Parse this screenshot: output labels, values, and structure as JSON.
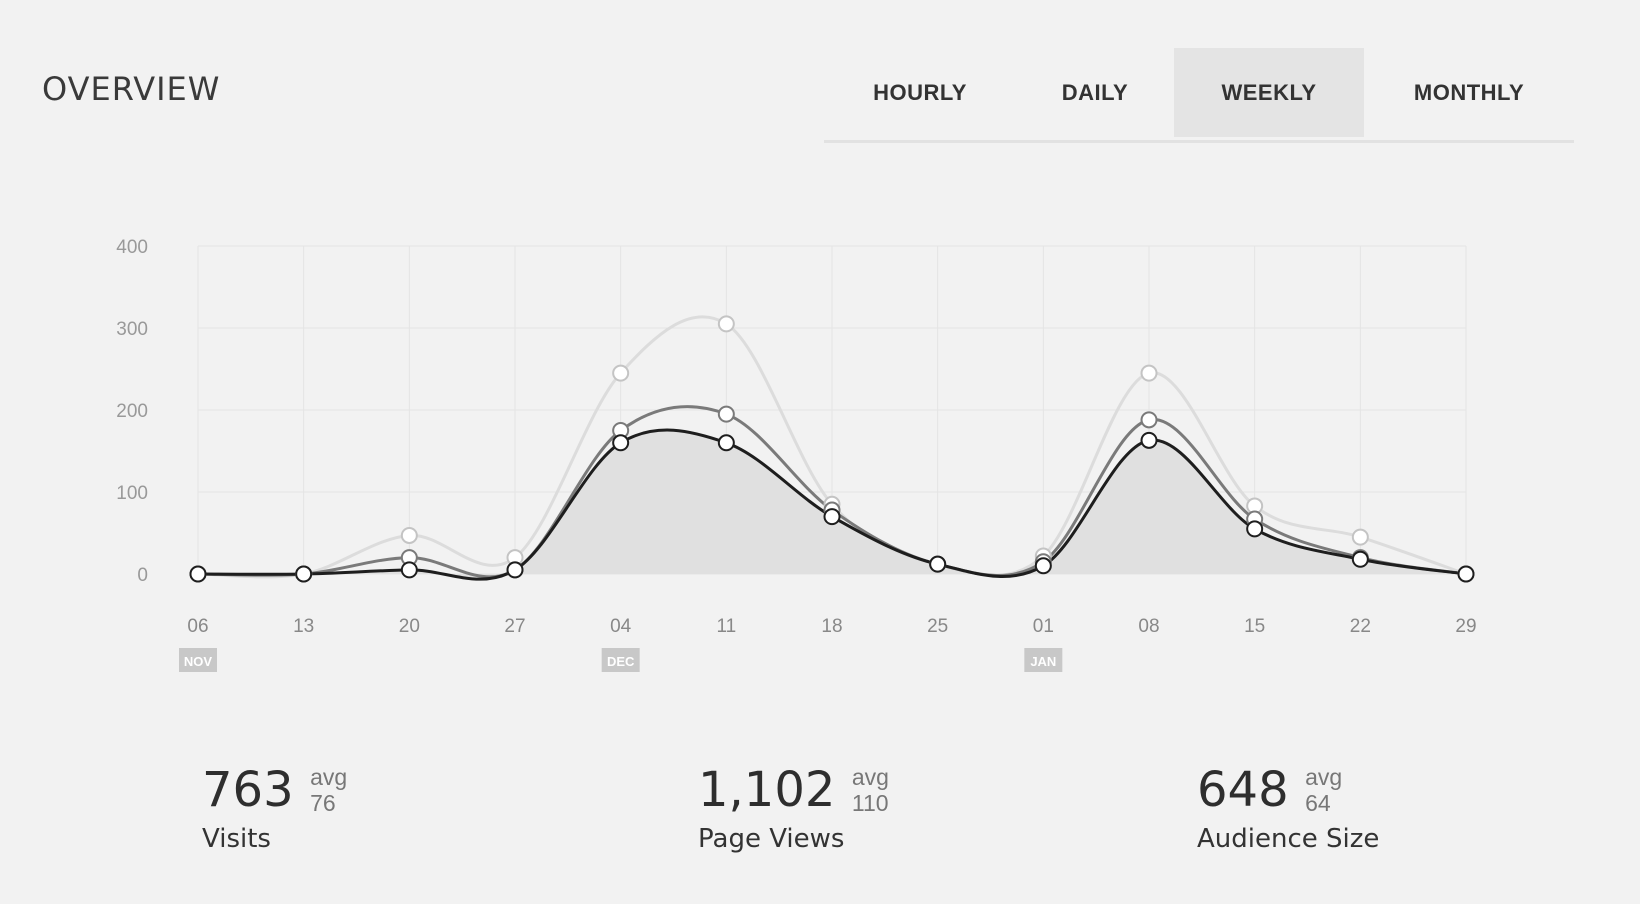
{
  "header": {
    "title": "OVERVIEW"
  },
  "tabs": [
    {
      "label": "HOURLY",
      "active": false
    },
    {
      "label": "DAILY",
      "active": false
    },
    {
      "label": "WEEKLY",
      "active": true
    },
    {
      "label": "MONTHLY",
      "active": false
    }
  ],
  "chart_data": {
    "type": "line",
    "x": [
      "06",
      "13",
      "20",
      "27",
      "04",
      "11",
      "18",
      "25",
      "01",
      "08",
      "15",
      "22",
      "29"
    ],
    "month_markers": [
      {
        "label": "NOV",
        "index": 0
      },
      {
        "label": "DEC",
        "index": 4
      },
      {
        "label": "JAN",
        "index": 8
      }
    ],
    "ylim": [
      0,
      400
    ],
    "yticks": [
      "400",
      "300",
      "200",
      "100",
      "0"
    ],
    "grid": true,
    "series": [
      {
        "values": [
          0,
          0,
          47,
          20,
          245,
          305,
          85,
          12,
          22,
          245,
          83,
          45,
          0
        ],
        "color": "#dcdcdc"
      },
      {
        "values": [
          0,
          0,
          20,
          5,
          175,
          195,
          78,
          12,
          15,
          188,
          67,
          20,
          0
        ],
        "color": "#7a7a7a"
      },
      {
        "values": [
          0,
          0,
          5,
          5,
          160,
          160,
          70,
          12,
          10,
          163,
          55,
          18,
          0
        ],
        "color": "#1e1e1e",
        "filled": true
      }
    ]
  },
  "stats": [
    {
      "value": "763",
      "avg_label": "avg",
      "avg": "76",
      "label": "Visits"
    },
    {
      "value": "1,102",
      "avg_label": "avg",
      "avg": "110",
      "label": "Page Views"
    },
    {
      "value": "648",
      "avg_label": "avg",
      "avg": "64",
      "label": "Audience Size"
    }
  ]
}
